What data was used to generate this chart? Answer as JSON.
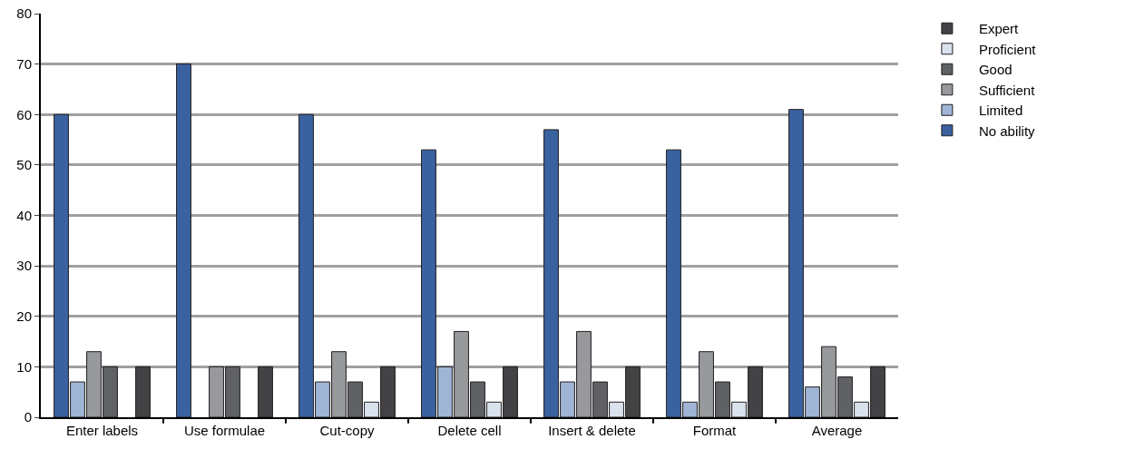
{
  "chart_data": {
    "type": "bar",
    "categories": [
      "Enter labels",
      "Use formulae",
      "Cut-copy",
      "Delete cell",
      "Insert & delete",
      "Format",
      "Average"
    ],
    "series": [
      {
        "name": "No ability",
        "color": "#3b62a0",
        "values": [
          60,
          70,
          60,
          53,
          57,
          53,
          61
        ]
      },
      {
        "name": "Limited",
        "color": "#a0b4d5",
        "values": [
          7,
          null,
          7,
          10,
          7,
          3,
          6
        ]
      },
      {
        "name": "Sufficient",
        "color": "#98999c",
        "values": [
          13,
          10,
          13,
          17,
          17,
          13,
          14
        ]
      },
      {
        "name": "Good",
        "color": "#606165",
        "values": [
          10,
          10,
          7,
          7,
          7,
          7,
          8
        ]
      },
      {
        "name": "Proficient",
        "color": "#dae2ee",
        "values": [
          null,
          null,
          3,
          3,
          3,
          3,
          3
        ]
      },
      {
        "name": "Expert",
        "color": "#434345",
        "values": [
          10,
          10,
          10,
          10,
          10,
          10,
          10
        ]
      }
    ],
    "ylim": [
      0,
      80
    ],
    "yticks": [
      0,
      10,
      20,
      30,
      40,
      50,
      60,
      70,
      80
    ],
    "grid": "y",
    "legend": "right"
  }
}
